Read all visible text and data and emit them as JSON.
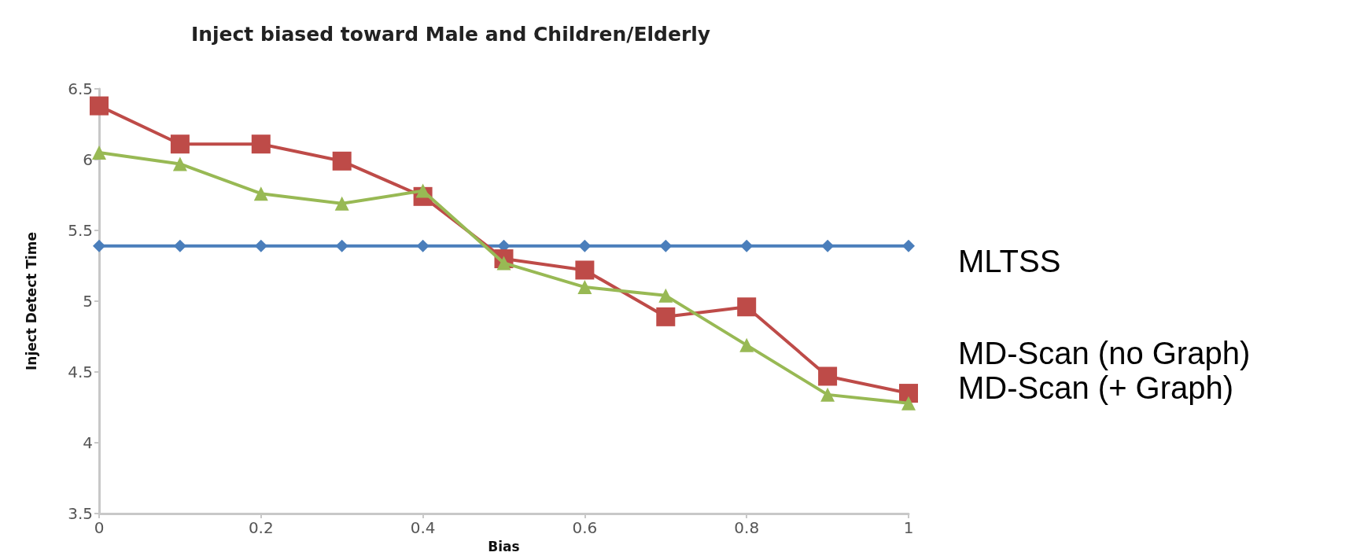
{
  "chart_data": {
    "type": "line",
    "title": "Inject biased toward Male and Children/Elderly",
    "xlabel": "Bias",
    "ylabel": "Inject Detect Time",
    "x": [
      0,
      0.1,
      0.2,
      0.3,
      0.4,
      0.5,
      0.6,
      0.7,
      0.8,
      0.9,
      1
    ],
    "series": [
      {
        "name": "MLTSS",
        "color": "#4a7ebb",
        "marker": "diamond",
        "values": [
          5.39,
          5.39,
          5.39,
          5.39,
          5.39,
          5.39,
          5.39,
          5.39,
          5.39,
          5.39,
          5.39
        ]
      },
      {
        "name": "MD-Scan (no Graph)",
        "color": "#be4b48",
        "marker": "square",
        "values": [
          6.38,
          6.11,
          6.11,
          5.99,
          5.74,
          5.3,
          5.22,
          4.89,
          4.96,
          4.47,
          4.35
        ]
      },
      {
        "name": "MD-Scan (+ Graph)",
        "color": "#98b954",
        "marker": "triangle",
        "values": [
          6.05,
          5.97,
          5.76,
          5.69,
          5.78,
          5.27,
          5.1,
          5.04,
          4.69,
          4.34,
          4.28
        ]
      }
    ],
    "xlim": [
      0,
      1
    ],
    "xticks": [
      0,
      0.2,
      0.4,
      0.6,
      0.8,
      1
    ],
    "ylim": [
      3.5,
      6.5
    ],
    "yticks": [
      3.5,
      4,
      4.5,
      5,
      5.5,
      6,
      6.5
    ],
    "grid": false,
    "legend": "right",
    "line_style": "solid"
  }
}
